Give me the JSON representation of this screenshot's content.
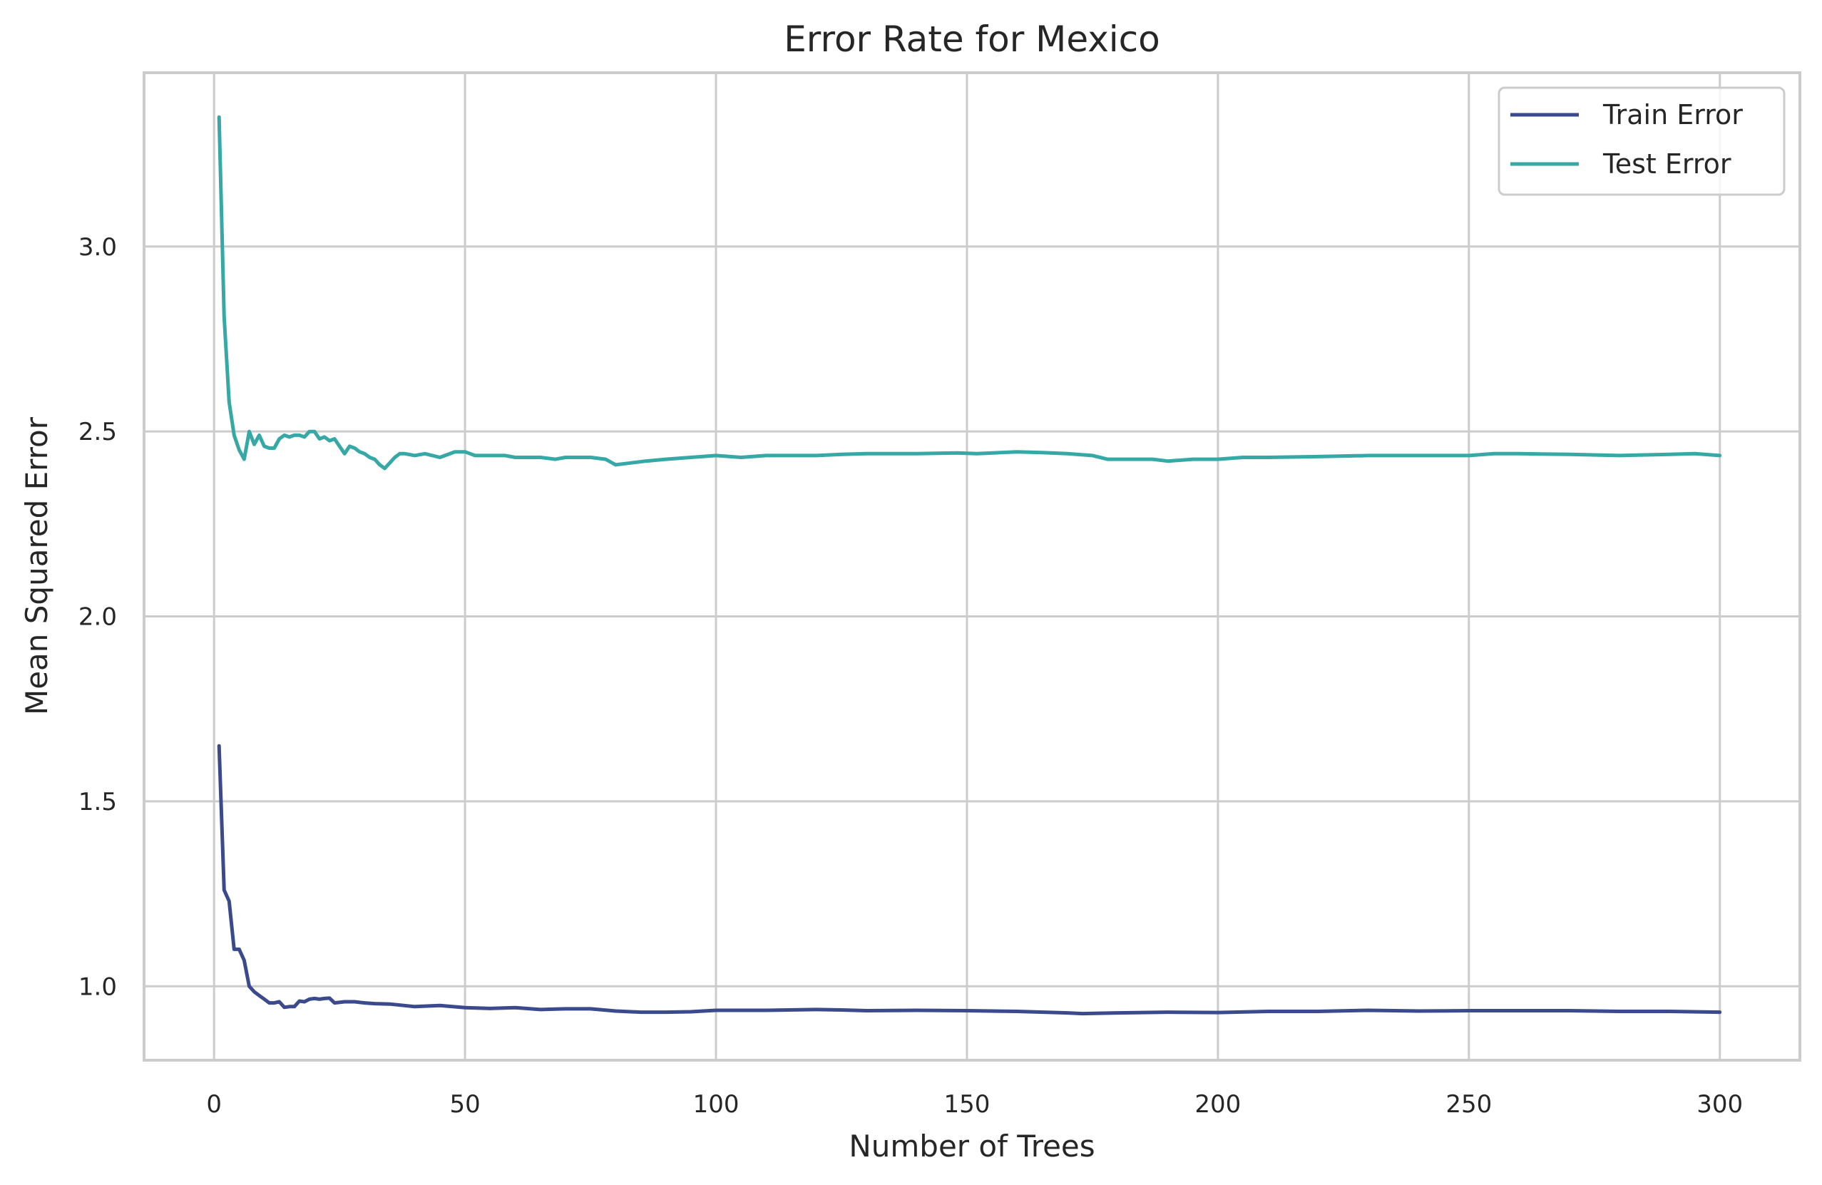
{
  "chart_data": {
    "type": "line",
    "title": "Error Rate for Mexico",
    "xlabel": "Number of Trees",
    "ylabel": "Mean Squared Error",
    "xlim": [
      -13.95,
      315.95
    ],
    "ylim": [
      0.8,
      3.47
    ],
    "xticks": [
      0,
      50,
      100,
      150,
      200,
      250,
      300
    ],
    "xtick_labels": [
      "0",
      "50",
      "100",
      "150",
      "200",
      "250",
      "300"
    ],
    "yticks": [
      1.0,
      1.5,
      2.0,
      2.5,
      3.0
    ],
    "ytick_labels": [
      "1.0",
      "1.5",
      "2.0",
      "2.5",
      "3.0"
    ],
    "grid": true,
    "legend_position": "top-right",
    "series": [
      {
        "name": "Train Error",
        "color": "#3b4a8c",
        "points": [
          [
            1,
            1.65
          ],
          [
            2,
            1.26
          ],
          [
            3,
            1.23
          ],
          [
            4,
            1.1
          ],
          [
            5,
            1.1
          ],
          [
            6,
            1.07
          ],
          [
            7,
            1.0
          ],
          [
            8,
            0.985
          ],
          [
            9,
            0.975
          ],
          [
            10,
            0.965
          ],
          [
            11,
            0.955
          ],
          [
            12,
            0.955
          ],
          [
            13,
            0.958
          ],
          [
            14,
            0.943
          ],
          [
            15,
            0.945
          ],
          [
            16,
            0.945
          ],
          [
            17,
            0.96
          ],
          [
            18,
            0.958
          ],
          [
            19,
            0.965
          ],
          [
            20,
            0.967
          ],
          [
            21,
            0.965
          ],
          [
            22,
            0.967
          ],
          [
            23,
            0.968
          ],
          [
            24,
            0.955
          ],
          [
            26,
            0.958
          ],
          [
            28,
            0.958
          ],
          [
            30,
            0.955
          ],
          [
            32,
            0.953
          ],
          [
            35,
            0.952
          ],
          [
            40,
            0.945
          ],
          [
            45,
            0.948
          ],
          [
            50,
            0.942
          ],
          [
            55,
            0.94
          ],
          [
            60,
            0.942
          ],
          [
            65,
            0.937
          ],
          [
            70,
            0.939
          ],
          [
            75,
            0.939
          ],
          [
            80,
            0.933
          ],
          [
            85,
            0.93
          ],
          [
            90,
            0.93
          ],
          [
            95,
            0.931
          ],
          [
            100,
            0.935
          ],
          [
            110,
            0.935
          ],
          [
            120,
            0.937
          ],
          [
            125,
            0.936
          ],
          [
            130,
            0.934
          ],
          [
            140,
            0.935
          ],
          [
            150,
            0.934
          ],
          [
            160,
            0.932
          ],
          [
            170,
            0.928
          ],
          [
            173,
            0.926
          ],
          [
            180,
            0.928
          ],
          [
            190,
            0.93
          ],
          [
            200,
            0.929
          ],
          [
            210,
            0.932
          ],
          [
            220,
            0.932
          ],
          [
            230,
            0.935
          ],
          [
            240,
            0.933
          ],
          [
            250,
            0.934
          ],
          [
            260,
            0.934
          ],
          [
            270,
            0.934
          ],
          [
            280,
            0.932
          ],
          [
            290,
            0.932
          ],
          [
            300,
            0.93
          ]
        ]
      },
      {
        "name": "Test Error",
        "color": "#36a8a6",
        "points": [
          [
            1,
            3.35
          ],
          [
            2,
            2.81
          ],
          [
            3,
            2.58
          ],
          [
            4,
            2.49
          ],
          [
            5,
            2.45
          ],
          [
            6,
            2.425
          ],
          [
            7,
            2.5
          ],
          [
            8,
            2.465
          ],
          [
            9,
            2.49
          ],
          [
            10,
            2.46
          ],
          [
            11,
            2.455
          ],
          [
            12,
            2.455
          ],
          [
            13,
            2.48
          ],
          [
            14,
            2.49
          ],
          [
            15,
            2.485
          ],
          [
            16,
            2.49
          ],
          [
            17,
            2.49
          ],
          [
            18,
            2.485
          ],
          [
            19,
            2.5
          ],
          [
            20,
            2.5
          ],
          [
            21,
            2.48
          ],
          [
            22,
            2.485
          ],
          [
            23,
            2.475
          ],
          [
            24,
            2.48
          ],
          [
            25,
            2.46
          ],
          [
            26,
            2.44
          ],
          [
            27,
            2.46
          ],
          [
            28,
            2.455
          ],
          [
            29,
            2.445
          ],
          [
            30,
            2.44
          ],
          [
            31,
            2.43
          ],
          [
            32,
            2.425
          ],
          [
            33,
            2.41
          ],
          [
            34,
            2.4
          ],
          [
            35,
            2.415
          ],
          [
            36,
            2.43
          ],
          [
            37,
            2.44
          ],
          [
            38,
            2.44
          ],
          [
            40,
            2.435
          ],
          [
            42,
            2.44
          ],
          [
            45,
            2.43
          ],
          [
            48,
            2.445
          ],
          [
            50,
            2.445
          ],
          [
            52,
            2.435
          ],
          [
            55,
            2.435
          ],
          [
            58,
            2.435
          ],
          [
            60,
            2.43
          ],
          [
            65,
            2.43
          ],
          [
            68,
            2.425
          ],
          [
            70,
            2.43
          ],
          [
            75,
            2.43
          ],
          [
            78,
            2.425
          ],
          [
            80,
            2.41
          ],
          [
            83,
            2.415
          ],
          [
            86,
            2.42
          ],
          [
            90,
            2.425
          ],
          [
            95,
            2.43
          ],
          [
            100,
            2.435
          ],
          [
            105,
            2.43
          ],
          [
            110,
            2.435
          ],
          [
            115,
            2.435
          ],
          [
            120,
            2.435
          ],
          [
            125,
            2.438
          ],
          [
            130,
            2.44
          ],
          [
            140,
            2.44
          ],
          [
            148,
            2.442
          ],
          [
            152,
            2.44
          ],
          [
            160,
            2.445
          ],
          [
            165,
            2.443
          ],
          [
            170,
            2.44
          ],
          [
            175,
            2.435
          ],
          [
            178,
            2.425
          ],
          [
            182,
            2.425
          ],
          [
            187,
            2.425
          ],
          [
            190,
            2.42
          ],
          [
            195,
            2.425
          ],
          [
            200,
            2.425
          ],
          [
            205,
            2.43
          ],
          [
            210,
            2.43
          ],
          [
            220,
            2.432
          ],
          [
            230,
            2.435
          ],
          [
            240,
            2.435
          ],
          [
            250,
            2.435
          ],
          [
            255,
            2.44
          ],
          [
            260,
            2.44
          ],
          [
            270,
            2.438
          ],
          [
            280,
            2.435
          ],
          [
            290,
            2.438
          ],
          [
            295,
            2.44
          ],
          [
            300,
            2.435
          ]
        ]
      }
    ]
  }
}
